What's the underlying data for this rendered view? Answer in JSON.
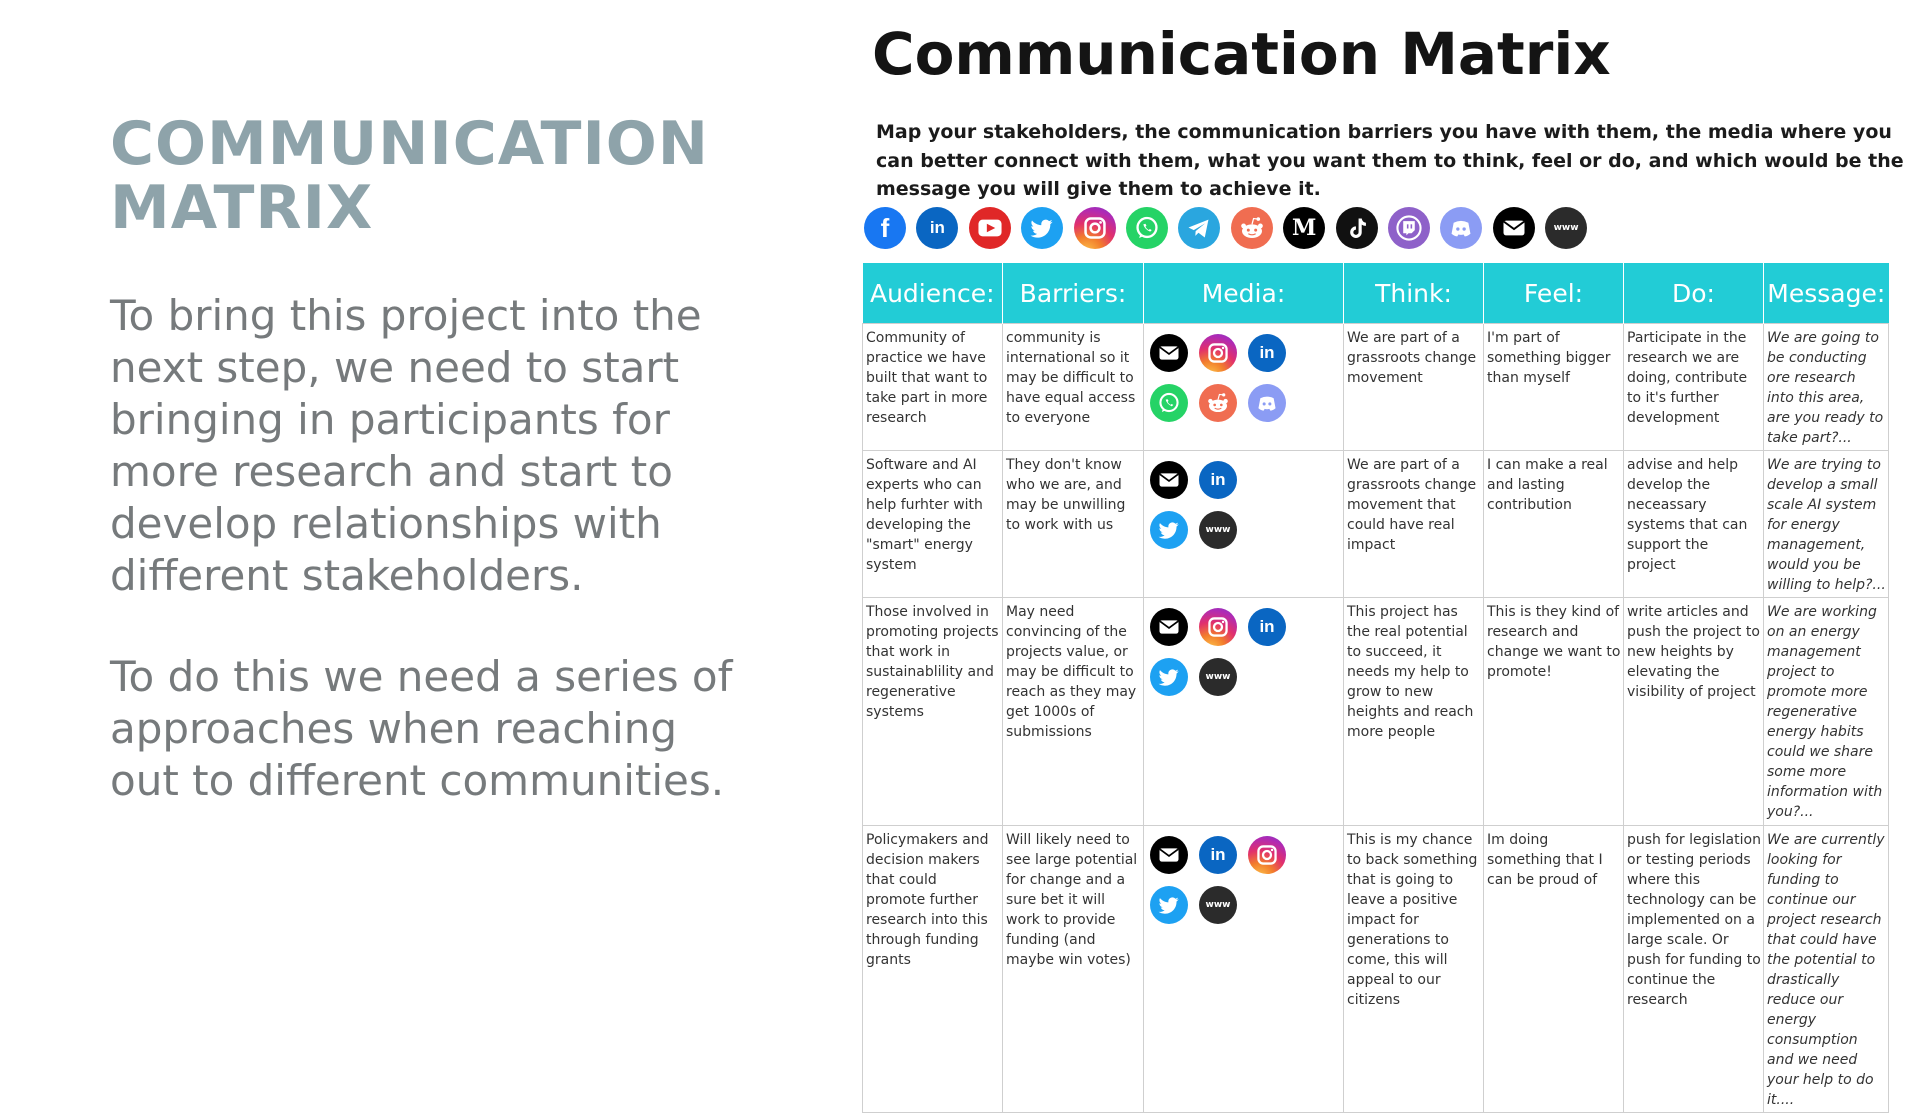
{
  "left": {
    "title_line1": "COMMUNICATION",
    "title_line2": "MATRIX",
    "paragraph1": "To bring this project into the next step, we need to start bringing in participants for more research and start to develop relationships with different stakeholders.",
    "paragraph2": "To do this we need a series of approaches when reaching out to different communities."
  },
  "matrix": {
    "title": "Communication Matrix",
    "subtitle": "Map your stakeholders, the communication barriers you have with them, the media where you can better connect with them, what you want them to think, feel or do, and which would be the message you will give them to achieve it.",
    "icon_bar": [
      "facebook-icon",
      "linkedin-icon",
      "youtube-icon",
      "twitter-icon",
      "instagram-icon",
      "whatsapp-icon",
      "telegram-icon",
      "reddit-icon",
      "medium-icon",
      "tiktok-icon",
      "twitch-icon",
      "discord-icon",
      "email-icon",
      "www-icon"
    ],
    "headers": {
      "audience": "Audience:",
      "barriers": "Barriers:",
      "media": "Media:",
      "think": "Think:",
      "feel": "Feel:",
      "do": "Do:",
      "message": "Message:"
    },
    "rows": [
      {
        "audience": "Community of practice we have built that want to take part in more research",
        "barriers": "community is international so it may be difficult to have equal access to everyone",
        "media": [
          [
            "email-icon",
            "instagram-icon",
            "linkedin-icon"
          ],
          [
            "whatsapp-icon",
            "reddit-icon",
            "discord-icon"
          ]
        ],
        "think": "We are part of a grassroots change movement",
        "feel": "I'm part of something bigger than myself",
        "do": "Participate in the research we are doing, contribute to it's further development",
        "message": "We are going to be conducting ore research into this area, are you ready to take part?..."
      },
      {
        "audience": "Software and AI experts who can help furhter with developing the \"smart\" energy system",
        "barriers": "They don't know who we are, and may be unwilling to work with us",
        "media": [
          [
            "email-icon",
            "linkedin-icon"
          ],
          [
            "twitter-icon",
            "www-icon"
          ]
        ],
        "think": "We are part of a grassroots change movement that could have real impact",
        "feel": "I can make a real and lasting contribution",
        "do": "advise and help develop the neceassary systems that can support the project",
        "message": "We are trying to develop a small scale AI system for energy management, would you be willing to help?..."
      },
      {
        "audience": "Those involved in promoting projects that work in sustainablility and regenerative systems",
        "barriers": "May need convincing of the projects value, or may be difficult to reach as they may get 1000s of submissions",
        "media": [
          [
            "email-icon",
            "instagram-icon",
            "linkedin-icon"
          ],
          [
            "twitter-icon",
            "www-icon"
          ]
        ],
        "think": "This project has the real potential to succeed, it needs my help to grow to new heights and reach more people",
        "feel": "This is they kind of research and change we want to promote!",
        "do": "write articles and push the project to new heights by elevating the visibility of project",
        "message": "We are working on an energy management project to promote more regenerative energy habits could we share some more information with you?..."
      },
      {
        "audience": "Policymakers and decision makers that could promote further research into this through funding grants",
        "barriers": "Will likely need to see large potential for change and a sure bet it will work to provide funding (and maybe win votes)",
        "media": [
          [
            "email-icon",
            "linkedin-icon",
            "instagram-icon"
          ],
          [
            "twitter-icon",
            "www-icon"
          ]
        ],
        "think": "This is my chance to back something that is going to leave a positive impact for generations to come, this will appeal to our citizens",
        "feel": "Im doing something that I can be proud of",
        "do": "push for legislation or testing periods where this technology can be implemented on a large scale. Or push for funding to continue the research",
        "message": "We are currently looking for funding to continue our project research that could have the potential to drastically reduce our energy consumption and we need your help to do it...."
      }
    ]
  }
}
